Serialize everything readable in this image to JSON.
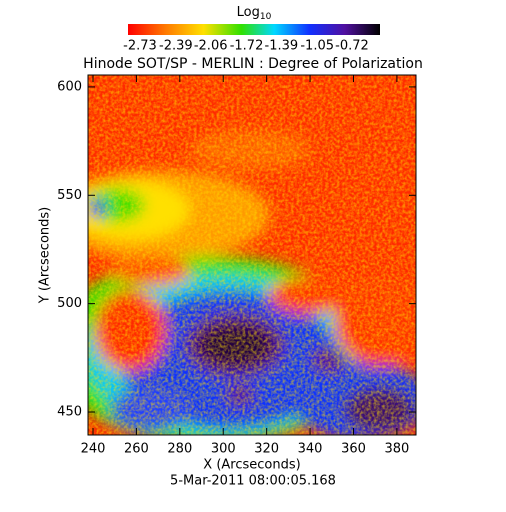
{
  "chart_data": {
    "type": "image",
    "title": "Hinode SOT/SP - MERLIN : Degree of Polarization",
    "xlabel": "X (Arcseconds)",
    "ylabel": "Y (Arcseconds)",
    "footnote": "5-Mar-2011 08:00:05.168",
    "xlim": [
      237.7,
      388.8
    ],
    "xticks": [
      240,
      260,
      280,
      300,
      320,
      340,
      360,
      380
    ],
    "ylim": [
      439.4,
      605.5
    ],
    "yticks": [
      450,
      500,
      550,
      600
    ],
    "colorbar": {
      "label": "Log",
      "label_sub": "10",
      "ticks": [
        -2.73,
        -2.39,
        -2.06,
        -1.72,
        -1.39,
        -1.05,
        -0.72
      ]
    }
  }
}
